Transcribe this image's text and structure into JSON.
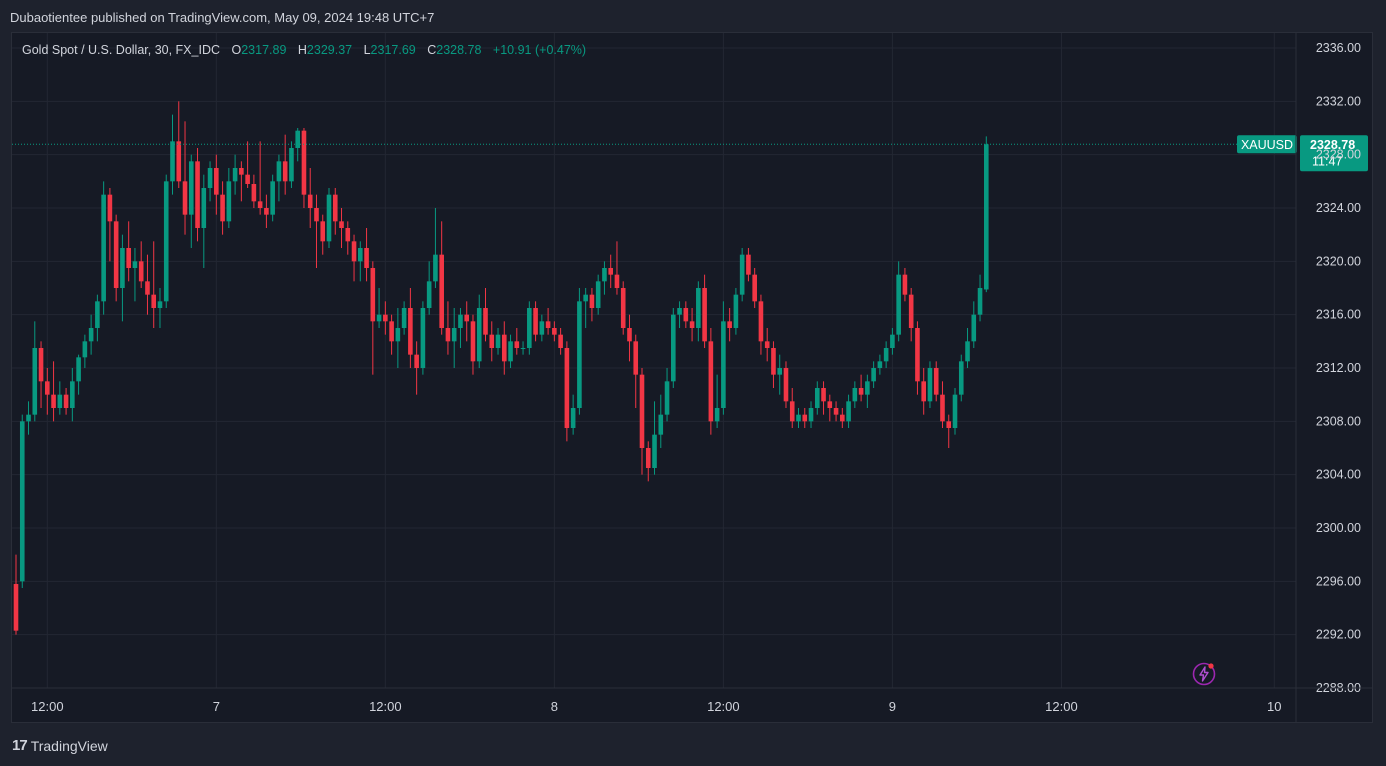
{
  "header": {
    "publish_line": "Dubaotientee published on TradingView.com, May 09, 2024 19:48 UTC+7"
  },
  "legend": {
    "symbol": "Gold Spot / U.S. Dollar, 30, FX_IDC",
    "o_label": "O",
    "o_value": "2317.89",
    "h_label": "H",
    "h_value": "2329.37",
    "l_label": "L",
    "l_value": "2317.69",
    "c_label": "C",
    "c_value": "2328.78",
    "change": "+10.91 (+0.47%)"
  },
  "last_price": {
    "ticker": "XAUUSD",
    "value": "2328.78",
    "countdown": "11:47"
  },
  "footer": {
    "brand": "TradingView",
    "logo_text": "17"
  },
  "colors": {
    "up": "#089981",
    "down": "#f23645",
    "background": "#161a25",
    "grid": "#232733",
    "text": "#d1d4dc"
  },
  "icons": {
    "alert": "lightning-bolt-icon",
    "logo": "tradingview-logo-icon"
  },
  "chart_data": {
    "type": "candlestick",
    "ylim": [
      2288,
      2336
    ],
    "y_ticks": [
      "2336.00",
      "2332.00",
      "2328.00",
      "2324.00",
      "2320.00",
      "2316.00",
      "2312.00",
      "2308.00",
      "2304.00",
      "2300.00",
      "2296.00",
      "2292.00",
      "2288.00"
    ],
    "x_ticks": [
      "12:00",
      "7",
      "12:00",
      "8",
      "12:00",
      "9",
      "12:00",
      "10"
    ],
    "x_tick_positions": [
      5,
      32,
      59,
      86,
      113,
      140,
      167,
      201
    ],
    "last_price": 2328.78,
    "ohlc": [
      [
        2295.8,
        2298.0,
        2292.0,
        2292.3
      ],
      [
        2296.0,
        2308.5,
        2295.5,
        2308.0
      ],
      [
        2308.0,
        2309.5,
        2307.0,
        2308.5
      ],
      [
        2308.5,
        2315.5,
        2308.0,
        2313.5
      ],
      [
        2313.5,
        2314.0,
        2309.0,
        2311.0
      ],
      [
        2311.0,
        2312.0,
        2308.5,
        2310.0
      ],
      [
        2310.0,
        2312.5,
        2308.0,
        2309.0
      ],
      [
        2309.0,
        2311.0,
        2308.5,
        2310.0
      ],
      [
        2310.0,
        2310.5,
        2308.5,
        2309.0
      ],
      [
        2309.0,
        2312.0,
        2308.0,
        2311.0
      ],
      [
        2311.0,
        2313.0,
        2310.0,
        2312.8
      ],
      [
        2312.8,
        2314.5,
        2312.0,
        2314.0
      ],
      [
        2314.0,
        2316.0,
        2313.0,
        2315.0
      ],
      [
        2315.0,
        2317.5,
        2314.0,
        2317.0
      ],
      [
        2317.0,
        2326.0,
        2316.0,
        2325.0
      ],
      [
        2325.0,
        2325.5,
        2320.0,
        2323.0
      ],
      [
        2323.0,
        2323.5,
        2317.0,
        2318.0
      ],
      [
        2318.0,
        2322.0,
        2315.5,
        2321.0
      ],
      [
        2321.0,
        2323.0,
        2318.5,
        2319.5
      ],
      [
        2319.5,
        2321.0,
        2317.0,
        2320.0
      ],
      [
        2320.0,
        2321.5,
        2318.0,
        2318.5
      ],
      [
        2318.5,
        2320.5,
        2316.0,
        2317.5
      ],
      [
        2317.5,
        2321.5,
        2315.0,
        2316.5
      ],
      [
        2316.5,
        2318.0,
        2315.0,
        2317.0
      ],
      [
        2317.0,
        2326.5,
        2316.5,
        2326.0
      ],
      [
        2326.0,
        2331.0,
        2325.0,
        2329.0
      ],
      [
        2329.0,
        2332.0,
        2325.5,
        2326.0
      ],
      [
        2326.0,
        2330.5,
        2322.0,
        2323.5
      ],
      [
        2323.5,
        2328.0,
        2321.0,
        2327.5
      ],
      [
        2327.5,
        2328.5,
        2321.5,
        2322.5
      ],
      [
        2322.5,
        2326.5,
        2319.5,
        2325.5
      ],
      [
        2325.5,
        2327.5,
        2324.5,
        2327.0
      ],
      [
        2327.0,
        2328.0,
        2323.5,
        2325.0
      ],
      [
        2325.0,
        2326.0,
        2322.0,
        2323.0
      ],
      [
        2323.0,
        2327.0,
        2322.5,
        2326.0
      ],
      [
        2326.0,
        2328.0,
        2325.0,
        2327.0
      ],
      [
        2327.0,
        2327.5,
        2324.5,
        2326.5
      ],
      [
        2326.5,
        2329.0,
        2325.5,
        2325.8
      ],
      [
        2325.8,
        2326.5,
        2324.0,
        2324.5
      ],
      [
        2324.5,
        2329.0,
        2323.5,
        2324.0
      ],
      [
        2324.0,
        2325.0,
        2322.5,
        2323.5
      ],
      [
        2323.5,
        2326.5,
        2323.0,
        2326.0
      ],
      [
        2326.0,
        2328.0,
        2324.5,
        2327.5
      ],
      [
        2327.5,
        2329.5,
        2325.0,
        2326.0
      ],
      [
        2326.0,
        2329.0,
        2325.5,
        2328.5
      ],
      [
        2328.5,
        2330.0,
        2327.5,
        2329.8
      ],
      [
        2329.8,
        2330.0,
        2324.0,
        2325.0
      ],
      [
        2325.0,
        2327.0,
        2322.5,
        2324.0
      ],
      [
        2324.0,
        2325.0,
        2319.5,
        2323.0
      ],
      [
        2323.0,
        2323.5,
        2320.5,
        2321.5
      ],
      [
        2321.5,
        2325.5,
        2321.0,
        2325.0
      ],
      [
        2325.0,
        2325.5,
        2322.0,
        2323.0
      ],
      [
        2323.0,
        2324.0,
        2321.0,
        2322.5
      ],
      [
        2322.5,
        2323.0,
        2320.5,
        2321.5
      ],
      [
        2321.5,
        2322.0,
        2318.5,
        2320.0
      ],
      [
        2320.0,
        2321.5,
        2318.5,
        2321.0
      ],
      [
        2321.0,
        2322.5,
        2318.5,
        2319.5
      ],
      [
        2319.5,
        2320.0,
        2311.5,
        2315.5
      ],
      [
        2315.5,
        2318.0,
        2315.0,
        2316.0
      ],
      [
        2316.0,
        2317.0,
        2314.5,
        2315.5
      ],
      [
        2315.5,
        2316.0,
        2313.0,
        2314.0
      ],
      [
        2314.0,
        2316.5,
        2312.0,
        2315.0
      ],
      [
        2315.0,
        2317.0,
        2314.5,
        2316.5
      ],
      [
        2316.5,
        2318.0,
        2312.0,
        2313.0
      ],
      [
        2313.0,
        2314.0,
        2310.0,
        2312.0
      ],
      [
        2312.0,
        2317.0,
        2311.5,
        2316.5
      ],
      [
        2316.5,
        2320.0,
        2316.0,
        2318.5
      ],
      [
        2318.5,
        2324.0,
        2318.0,
        2320.5
      ],
      [
        2320.5,
        2323.0,
        2314.5,
        2315.0
      ],
      [
        2315.0,
        2317.0,
        2313.0,
        2314.0
      ],
      [
        2314.0,
        2316.5,
        2312.0,
        2315.0
      ],
      [
        2315.0,
        2316.5,
        2313.5,
        2316.0
      ],
      [
        2316.0,
        2317.0,
        2314.0,
        2315.5
      ],
      [
        2315.5,
        2316.0,
        2311.5,
        2312.5
      ],
      [
        2312.5,
        2317.5,
        2312.0,
        2316.5
      ],
      [
        2316.5,
        2318.0,
        2314.0,
        2314.5
      ],
      [
        2314.5,
        2315.5,
        2312.5,
        2313.5
      ],
      [
        2313.5,
        2315.0,
        2313.0,
        2314.5
      ],
      [
        2314.5,
        2315.5,
        2311.5,
        2312.5
      ],
      [
        2312.5,
        2314.5,
        2312.0,
        2314.0
      ],
      [
        2314.0,
        2315.0,
        2313.0,
        2313.5
      ],
      [
        2313.5,
        2314.0,
        2313.0,
        2313.5
      ],
      [
        2313.5,
        2317.0,
        2313.0,
        2316.5
      ],
      [
        2316.5,
        2317.0,
        2314.0,
        2314.5
      ],
      [
        2314.5,
        2316.0,
        2314.0,
        2315.5
      ],
      [
        2315.5,
        2316.5,
        2314.5,
        2315.0
      ],
      [
        2315.0,
        2315.5,
        2314.0,
        2314.5
      ],
      [
        2314.5,
        2315.0,
        2313.0,
        2313.5
      ],
      [
        2313.5,
        2314.0,
        2306.5,
        2307.5
      ],
      [
        2307.5,
        2310.0,
        2307.0,
        2309.0
      ],
      [
        2309.0,
        2318.0,
        2308.5,
        2317.0
      ],
      [
        2317.0,
        2318.0,
        2315.0,
        2317.5
      ],
      [
        2317.5,
        2318.0,
        2315.5,
        2316.5
      ],
      [
        2316.5,
        2319.0,
        2316.0,
        2318.5
      ],
      [
        2318.5,
        2320.0,
        2317.5,
        2319.5
      ],
      [
        2319.5,
        2320.5,
        2318.0,
        2319.0
      ],
      [
        2319.0,
        2321.5,
        2317.5,
        2318.0
      ],
      [
        2318.0,
        2318.5,
        2314.5,
        2315.0
      ],
      [
        2315.0,
        2316.0,
        2312.5,
        2314.0
      ],
      [
        2314.0,
        2314.5,
        2309.0,
        2311.5
      ],
      [
        2311.5,
        2312.0,
        2304.0,
        2306.0
      ],
      [
        2306.0,
        2306.5,
        2303.5,
        2304.5
      ],
      [
        2304.5,
        2309.5,
        2304.0,
        2307.0
      ],
      [
        2307.0,
        2310.0,
        2306.0,
        2308.5
      ],
      [
        2308.5,
        2312.0,
        2308.0,
        2311.0
      ],
      [
        2311.0,
        2316.5,
        2310.5,
        2316.0
      ],
      [
        2316.0,
        2317.0,
        2315.0,
        2316.5
      ],
      [
        2316.5,
        2317.0,
        2315.0,
        2315.5
      ],
      [
        2315.5,
        2316.5,
        2314.0,
        2315.0
      ],
      [
        2315.0,
        2318.5,
        2314.0,
        2318.0
      ],
      [
        2318.0,
        2319.0,
        2313.5,
        2314.0
      ],
      [
        2314.0,
        2315.0,
        2307.0,
        2308.0
      ],
      [
        2308.0,
        2311.5,
        2307.5,
        2309.0
      ],
      [
        2309.0,
        2317.0,
        2308.5,
        2315.5
      ],
      [
        2315.5,
        2316.5,
        2314.0,
        2315.0
      ],
      [
        2315.0,
        2318.0,
        2314.5,
        2317.5
      ],
      [
        2317.5,
        2321.0,
        2317.0,
        2320.5
      ],
      [
        2320.5,
        2321.0,
        2318.5,
        2319.0
      ],
      [
        2319.0,
        2319.5,
        2316.5,
        2317.0
      ],
      [
        2317.0,
        2317.5,
        2313.0,
        2314.0
      ],
      [
        2314.0,
        2315.0,
        2312.5,
        2313.5
      ],
      [
        2313.5,
        2314.0,
        2310.5,
        2311.5
      ],
      [
        2311.5,
        2313.0,
        2310.0,
        2312.0
      ],
      [
        2312.0,
        2312.5,
        2309.0,
        2309.5
      ],
      [
        2309.5,
        2310.5,
        2307.5,
        2308.0
      ],
      [
        2308.0,
        2309.0,
        2307.5,
        2308.5
      ],
      [
        2308.5,
        2309.0,
        2307.5,
        2308.0
      ],
      [
        2308.0,
        2309.5,
        2307.5,
        2309.0
      ],
      [
        2309.0,
        2311.0,
        2308.5,
        2310.5
      ],
      [
        2310.5,
        2311.0,
        2308.5,
        2309.5
      ],
      [
        2309.5,
        2310.0,
        2308.0,
        2309.0
      ],
      [
        2309.0,
        2309.5,
        2308.0,
        2308.5
      ],
      [
        2308.5,
        2309.0,
        2307.5,
        2308.0
      ],
      [
        2308.0,
        2310.0,
        2307.5,
        2309.5
      ],
      [
        2309.5,
        2311.0,
        2309.0,
        2310.5
      ],
      [
        2310.5,
        2311.5,
        2309.5,
        2310.0
      ],
      [
        2310.0,
        2311.5,
        2309.0,
        2311.0
      ],
      [
        2311.0,
        2312.5,
        2310.5,
        2312.0
      ],
      [
        2312.0,
        2313.0,
        2311.5,
        2312.5
      ],
      [
        2312.5,
        2314.0,
        2312.0,
        2313.5
      ],
      [
        2313.5,
        2315.0,
        2313.0,
        2314.5
      ],
      [
        2314.5,
        2320.0,
        2314.0,
        2319.0
      ],
      [
        2319.0,
        2319.5,
        2317.0,
        2317.5
      ],
      [
        2317.5,
        2318.0,
        2314.0,
        2315.0
      ],
      [
        2315.0,
        2315.5,
        2310.0,
        2311.0
      ],
      [
        2311.0,
        2312.0,
        2308.5,
        2309.5
      ],
      [
        2309.5,
        2312.5,
        2309.0,
        2312.0
      ],
      [
        2312.0,
        2312.5,
        2309.5,
        2310.0
      ],
      [
        2310.0,
        2311.0,
        2307.5,
        2308.0
      ],
      [
        2308.0,
        2308.5,
        2306.0,
        2307.5
      ],
      [
        2307.5,
        2310.5,
        2307.0,
        2310.0
      ],
      [
        2310.0,
        2313.0,
        2309.5,
        2312.5
      ],
      [
        2312.5,
        2315.0,
        2312.0,
        2314.0
      ],
      [
        2314.0,
        2317.0,
        2313.5,
        2316.0
      ],
      [
        2316.0,
        2319.0,
        2315.5,
        2318.0
      ],
      [
        2317.89,
        2329.37,
        2317.69,
        2328.78
      ]
    ]
  }
}
